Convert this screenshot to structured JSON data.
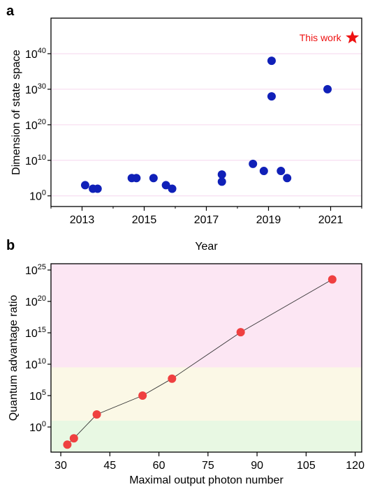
{
  "chart_data": [
    {
      "panel": "a",
      "type": "scatter",
      "title": "",
      "xlabel": "Year",
      "ylabel": "Dimension of state space",
      "xlim": [
        2012.0,
        2022.0
      ],
      "ylim": [
        -3,
        50
      ],
      "y_scale": "log",
      "xticks": [
        2013,
        2015,
        2017,
        2019,
        2021
      ],
      "yticks": [
        {
          "base": "10",
          "exp": "0",
          "value": 0
        },
        {
          "base": "10",
          "exp": "10",
          "value": 10
        },
        {
          "base": "10",
          "exp": "20",
          "value": 20
        },
        {
          "base": "10",
          "exp": "30",
          "value": 30
        },
        {
          "base": "10",
          "exp": "40",
          "value": 40
        }
      ],
      "grid": true,
      "series": [
        {
          "color": "#1020b8",
          "x": [
            2013.1,
            2013.35,
            2013.5,
            2014.6,
            2014.75,
            2015.3,
            2015.7,
            2015.9,
            2017.5,
            2017.5,
            2018.5,
            2018.85,
            2019.1,
            2019.1,
            2019.4,
            2019.6,
            2020.9
          ],
          "y": [
            3,
            2,
            2,
            5,
            5,
            5,
            3,
            2,
            6,
            4,
            9,
            7,
            38,
            28,
            7,
            5,
            30
          ]
        }
      ],
      "annotations": [
        {
          "text": "This work",
          "x": 2021.7,
          "y": 44.5,
          "color": "#ee1111",
          "marker": "star"
        }
      ]
    },
    {
      "panel": "b",
      "type": "line",
      "title": "",
      "xlabel": "Maximal output photon number",
      "ylabel": "Quantum advantage ratio",
      "xlim": [
        27,
        122
      ],
      "ylim": [
        -4,
        26
      ],
      "y_scale": "log",
      "xticks": [
        30,
        45,
        60,
        75,
        90,
        105,
        120
      ],
      "yticks": [
        {
          "base": "10",
          "exp": "0",
          "value": 0
        },
        {
          "base": "10",
          "exp": "5",
          "value": 5
        },
        {
          "base": "10",
          "exp": "10",
          "value": 10
        },
        {
          "base": "10",
          "exp": "15",
          "value": 15
        },
        {
          "base": "10",
          "exp": "20",
          "value": 20
        },
        {
          "base": "10",
          "exp": "25",
          "value": 25
        }
      ],
      "bands": [
        {
          "from": -4,
          "to": 1,
          "color": "#e8f8e3"
        },
        {
          "from": 1,
          "to": 9.5,
          "color": "#fbf8e6"
        },
        {
          "from": 9.5,
          "to": 26,
          "color": "#fce6f3"
        }
      ],
      "series": [
        {
          "color": "#ef4040",
          "x": [
            32,
            34,
            41,
            55,
            64,
            85,
            113
          ],
          "y": [
            -2.8,
            -1.8,
            2.0,
            5.0,
            7.7,
            15.1,
            23.5
          ]
        }
      ]
    }
  ]
}
